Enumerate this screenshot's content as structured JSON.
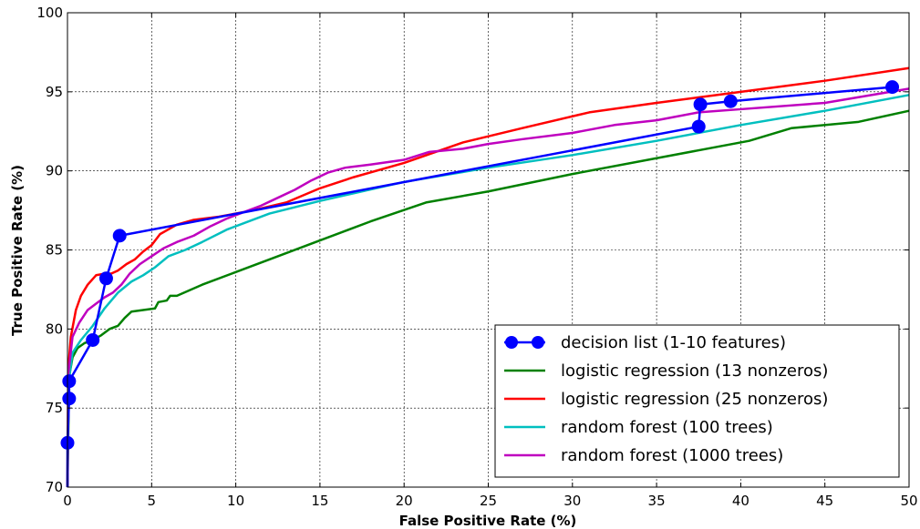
{
  "chart_data": {
    "type": "line",
    "title": "",
    "xlabel": "False Positive Rate (%)",
    "ylabel": "True Positive Rate (%)",
    "xlim": [
      0,
      50
    ],
    "ylim": [
      70,
      100
    ],
    "xticks": [
      0,
      5,
      10,
      15,
      20,
      25,
      30,
      35,
      40,
      45,
      50
    ],
    "yticks": [
      70,
      75,
      80,
      85,
      90,
      95,
      100
    ],
    "grid": true,
    "legend_position": "bottom-right",
    "series": [
      {
        "name": "decision list (1-10 features)",
        "color": "#0000ff",
        "markers": true,
        "x": [
          0.0,
          0.0,
          0.1,
          0.1,
          1.5,
          2.3,
          3.1,
          37.5,
          37.6,
          39.4,
          49.0
        ],
        "y": [
          70.0,
          72.8,
          75.6,
          76.7,
          79.3,
          83.2,
          85.9,
          92.8,
          94.2,
          94.4,
          95.3
        ]
      },
      {
        "name": "logistic regression (13 nonzeros)",
        "color": "#008000",
        "markers": false,
        "x": [
          0,
          0.1,
          0.3,
          0.6,
          1.0,
          1.5,
          2.0,
          2.5,
          3.0,
          3.4,
          3.8,
          5.2,
          5.4,
          5.9,
          6.1,
          6.5,
          8,
          10,
          12,
          15,
          18,
          21.3,
          25,
          30,
          35,
          40.5,
          43,
          47,
          50
        ],
        "y": [
          70,
          77.0,
          78.2,
          78.8,
          79.1,
          79.3,
          79.6,
          80.0,
          80.2,
          80.7,
          81.1,
          81.3,
          81.7,
          81.8,
          82.1,
          82.1,
          82.8,
          83.6,
          84.4,
          85.6,
          86.8,
          88.0,
          88.7,
          89.8,
          90.8,
          91.9,
          92.7,
          93.1,
          93.8
        ]
      },
      {
        "name": "logistic regression (25 nonzeros)",
        "color": "#ff0000",
        "markers": false,
        "x": [
          0,
          0.05,
          0.2,
          0.5,
          0.8,
          1.2,
          1.7,
          2.2,
          2.6,
          3.0,
          3.5,
          4.0,
          4.5,
          5.0,
          5.5,
          6.0,
          6.5,
          7.5,
          9,
          11,
          13,
          15,
          17,
          20,
          23.5,
          27,
          31,
          35,
          40,
          45,
          50
        ],
        "y": [
          70,
          77.5,
          79.5,
          81.2,
          82.1,
          82.8,
          83.4,
          83.5,
          83.5,
          83.7,
          84.1,
          84.4,
          84.9,
          85.3,
          86.0,
          86.3,
          86.6,
          86.9,
          87.1,
          87.5,
          88.0,
          88.9,
          89.6,
          90.5,
          91.8,
          92.7,
          93.7,
          94.3,
          95.0,
          95.7,
          96.5
        ]
      },
      {
        "name": "random forest (100 trees)",
        "color": "#00bfbf",
        "markers": false,
        "x": [
          0,
          0.05,
          0.3,
          0.8,
          1.5,
          2.2,
          3.0,
          3.8,
          4.5,
          5.2,
          6.0,
          7.0,
          8.0,
          9.5,
          12,
          15,
          20,
          25,
          30,
          35,
          40,
          45,
          50
        ],
        "y": [
          70,
          76.5,
          78.5,
          79.3,
          80.2,
          81.3,
          82.3,
          83.0,
          83.4,
          83.9,
          84.6,
          85.0,
          85.5,
          86.3,
          87.3,
          88.1,
          89.3,
          90.2,
          91.0,
          91.9,
          92.9,
          93.8,
          94.8
        ]
      },
      {
        "name": "random forest (1000 trees)",
        "color": "#bf00bf",
        "markers": false,
        "x": [
          0,
          0.05,
          0.3,
          0.7,
          1.2,
          1.7,
          2.2,
          2.7,
          3.2,
          3.7,
          4.3,
          5.0,
          5.7,
          6.5,
          7.5,
          8.5,
          9.5,
          10.5,
          11.5,
          12.5,
          13.5,
          14.5,
          15.5,
          16.5,
          18,
          20,
          21.5,
          23.5,
          25,
          27,
          30,
          32.5,
          35,
          37.5,
          40,
          45,
          50
        ],
        "y": [
          70,
          77.2,
          79.5,
          80.4,
          81.2,
          81.6,
          82.0,
          82.3,
          82.8,
          83.5,
          84.1,
          84.6,
          85.1,
          85.5,
          85.9,
          86.5,
          87.0,
          87.4,
          87.8,
          88.3,
          88.8,
          89.4,
          89.9,
          90.2,
          90.4,
          90.7,
          91.2,
          91.4,
          91.7,
          92.0,
          92.4,
          92.9,
          93.2,
          93.7,
          93.9,
          94.3,
          95.2
        ]
      }
    ]
  }
}
